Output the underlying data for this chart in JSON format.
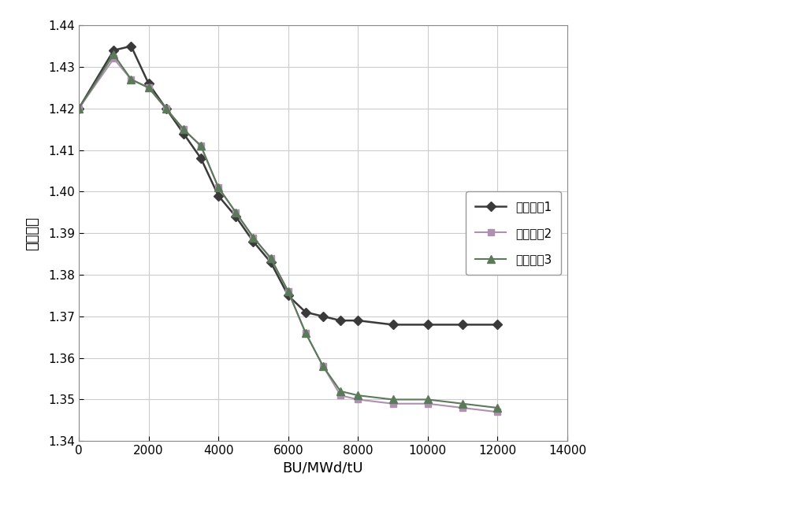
{
  "series": [
    {
      "label": "组件分区1",
      "color": "#3a3a3a",
      "marker": "D",
      "markersize": 6,
      "linewidth": 1.8,
      "x": [
        0,
        1000,
        1500,
        2000,
        2500,
        3000,
        3500,
        4000,
        4500,
        5000,
        5500,
        6000,
        6500,
        7000,
        7500,
        8000,
        9000,
        10000,
        11000,
        12000
      ],
      "y": [
        1.42,
        1.434,
        1.435,
        1.426,
        1.42,
        1.414,
        1.408,
        1.399,
        1.394,
        1.388,
        1.383,
        1.375,
        1.371,
        1.37,
        1.369,
        1.369,
        1.368,
        1.368,
        1.368,
        1.368
      ]
    },
    {
      "label": "组件分区2",
      "color": "#b090b0",
      "marker": "s",
      "markersize": 6,
      "linewidth": 1.5,
      "x": [
        0,
        1000,
        1500,
        2000,
        2500,
        3000,
        3500,
        4000,
        4500,
        5000,
        5500,
        6000,
        6500,
        7000,
        7500,
        8000,
        9000,
        10000,
        11000,
        12000
      ],
      "y": [
        1.42,
        1.432,
        1.427,
        1.425,
        1.42,
        1.415,
        1.411,
        1.401,
        1.395,
        1.389,
        1.384,
        1.376,
        1.366,
        1.358,
        1.351,
        1.35,
        1.349,
        1.349,
        1.348,
        1.347
      ]
    },
    {
      "label": "组件分区3",
      "color": "#5a7a5a",
      "marker": "^",
      "markersize": 7,
      "linewidth": 1.5,
      "x": [
        0,
        1000,
        1500,
        2000,
        2500,
        3000,
        3500,
        4000,
        4500,
        5000,
        5500,
        6000,
        6500,
        7000,
        7500,
        8000,
        9000,
        10000,
        11000,
        12000
      ],
      "y": [
        1.42,
        1.433,
        1.427,
        1.425,
        1.42,
        1.415,
        1.411,
        1.401,
        1.395,
        1.389,
        1.384,
        1.376,
        1.366,
        1.358,
        1.352,
        1.351,
        1.35,
        1.35,
        1.349,
        1.348
      ]
    }
  ],
  "xlabel": "BU/MWd/tU",
  "ylabel": "焉升因子",
  "xlim": [
    0,
    14000
  ],
  "ylim": [
    1.34,
    1.44
  ],
  "xticks": [
    0,
    2000,
    4000,
    6000,
    8000,
    10000,
    12000,
    14000
  ],
  "yticks": [
    1.34,
    1.35,
    1.36,
    1.37,
    1.38,
    1.39,
    1.4,
    1.41,
    1.42,
    1.43,
    1.44
  ],
  "grid_color": "#cccccc",
  "background_color": "#ffffff",
  "legend_loc": "center right",
  "axis_label_fontsize": 13,
  "tick_fontsize": 11,
  "legend_fontsize": 11
}
